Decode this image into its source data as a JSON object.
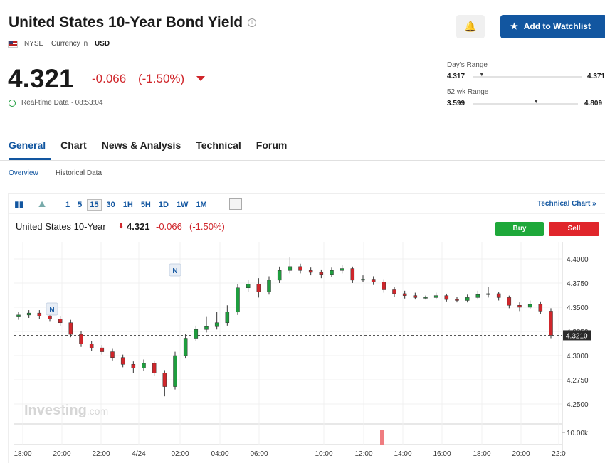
{
  "header": {
    "title": "United States 10-Year Bond Yield",
    "exchange": "NYSE",
    "currency_label": "Currency in",
    "currency": "USD",
    "price": "4.321",
    "change": "-0.066",
    "change_pct": "(-1.50%)",
    "realtime": "Real-time Data · 08:53:04",
    "watchlist": "Add to Watchlist"
  },
  "ranges": {
    "day": {
      "label": "Day's Range",
      "low": 4.317,
      "high": 4.371
    },
    "week52": {
      "label": "52 wk Range",
      "low": 3.599,
      "high": 4.809
    },
    "current": 4.321
  },
  "tabs": [
    "General",
    "Chart",
    "News & Analysis",
    "Technical",
    "Forum"
  ],
  "subtabs": [
    "Overview",
    "Historical Data"
  ],
  "toolbar": {
    "intervals": [
      "1",
      "5",
      "15",
      "30",
      "1H",
      "5H",
      "1D",
      "1W",
      "1M"
    ],
    "technical_chart": "Technical Chart »"
  },
  "chart_header": {
    "name": "United States 10-Year",
    "price": "4.321",
    "change": "-0.066",
    "change_pct": "(-1.50%)",
    "buy": "Buy",
    "sell": "Sell"
  },
  "watermark": {
    "brand": "Investing",
    "suffix": ".com"
  },
  "news_markers": [
    "N",
    "N"
  ],
  "chart_data": {
    "type": "candlestick",
    "up_color": "#1e9e3e",
    "down_color": "#d0262b",
    "open": [
      4.34,
      4.342,
      4.344,
      4.341,
      4.338,
      4.334,
      4.322,
      4.312,
      4.308,
      4.304,
      4.298,
      4.291,
      4.287,
      4.292,
      4.282,
      4.268,
      4.3,
      4.318,
      4.327,
      4.33,
      4.334,
      4.345,
      4.37,
      4.374,
      4.366,
      4.378,
      4.388,
      4.392,
      4.388,
      4.386,
      4.384,
      4.388,
      4.39,
      4.378,
      4.379,
      4.376,
      4.368,
      4.364,
      4.362,
      4.36,
      4.36,
      4.362,
      4.358,
      4.357,
      4.36,
      4.363,
      4.364,
      4.36,
      4.352,
      4.35,
      4.353,
      4.346
    ],
    "close": [
      4.342,
      4.344,
      4.341,
      4.338,
      4.334,
      4.322,
      4.312,
      4.308,
      4.304,
      4.298,
      4.291,
      4.287,
      4.292,
      4.282,
      4.268,
      4.3,
      4.318,
      4.327,
      4.33,
      4.334,
      4.345,
      4.37,
      4.374,
      4.366,
      4.378,
      4.388,
      4.392,
      4.388,
      4.386,
      4.384,
      4.388,
      4.39,
      4.378,
      4.379,
      4.376,
      4.368,
      4.364,
      4.362,
      4.36,
      4.36,
      4.362,
      4.358,
      4.357,
      4.36,
      4.363,
      4.364,
      4.36,
      4.352,
      4.35,
      4.353,
      4.346,
      4.321
    ],
    "high": [
      4.345,
      4.347,
      4.347,
      4.344,
      4.341,
      4.337,
      4.325,
      4.315,
      4.311,
      4.307,
      4.301,
      4.294,
      4.296,
      4.295,
      4.285,
      4.304,
      4.322,
      4.331,
      4.34,
      4.345,
      4.352,
      4.374,
      4.378,
      4.38,
      4.382,
      4.392,
      4.402,
      4.395,
      4.391,
      4.389,
      4.391,
      4.394,
      4.392,
      4.383,
      4.382,
      4.379,
      4.371,
      4.367,
      4.365,
      4.362,
      4.365,
      4.364,
      4.361,
      4.363,
      4.367,
      4.371,
      4.366,
      4.362,
      4.355,
      4.357,
      4.356,
      4.349
    ],
    "low": [
      4.337,
      4.339,
      4.338,
      4.335,
      4.331,
      4.319,
      4.309,
      4.305,
      4.301,
      4.295,
      4.288,
      4.282,
      4.284,
      4.279,
      4.258,
      4.265,
      4.297,
      4.315,
      4.324,
      4.327,
      4.331,
      4.342,
      4.366,
      4.36,
      4.363,
      4.375,
      4.385,
      4.385,
      4.383,
      4.38,
      4.381,
      4.385,
      4.375,
      4.376,
      4.373,
      4.365,
      4.361,
      4.359,
      4.358,
      4.358,
      4.358,
      4.356,
      4.355,
      4.355,
      4.358,
      4.36,
      4.357,
      4.349,
      4.346,
      4.348,
      4.343,
      4.318
    ],
    "ylim": [
      4.2302,
      4.4176
    ],
    "yticks": [
      {
        "value": 4.25,
        "label": "4.2500"
      },
      {
        "value": 4.275,
        "label": "4.2750"
      },
      {
        "value": 4.3,
        "label": "4.3000"
      },
      {
        "value": 4.325,
        "label": "4.3250"
      },
      {
        "value": 4.35,
        "label": "4.3500"
      },
      {
        "value": 4.375,
        "label": "4.3750"
      },
      {
        "value": 4.4,
        "label": "4.4000"
      }
    ],
    "last": {
      "value": 4.321,
      "label": "4.3210"
    },
    "xticks": [
      "18:00",
      "20:00",
      "22:00",
      "4/24",
      "02:00",
      "04:00",
      "06:00",
      "10:00",
      "12:00",
      "14:00",
      "16:00",
      "18:00",
      "20:00",
      "22:0"
    ],
    "volume": {
      "value": 12000,
      "lim": [
        0,
        16500
      ],
      "tick": {
        "value": 10000,
        "label": "10.00k"
      }
    }
  }
}
